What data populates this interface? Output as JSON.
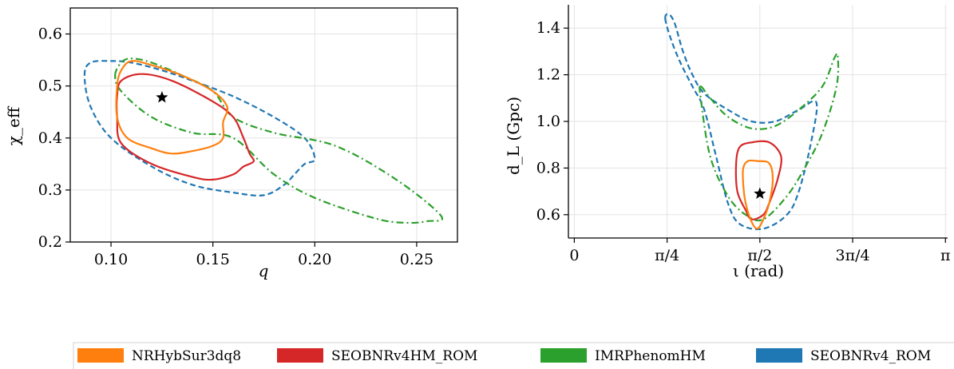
{
  "chart_data": [
    {
      "type": "contour",
      "panel": "left",
      "xlabel": "q",
      "ylabel": "χ_eff",
      "xlim": [
        0.08,
        0.27
      ],
      "ylim": [
        0.2,
        0.65
      ],
      "xticks": [
        0.1,
        0.15,
        0.2,
        0.25
      ],
      "xtick_labels": [
        "0.10",
        "0.15",
        "0.20",
        "0.25"
      ],
      "yticks": [
        0.2,
        0.3,
        0.4,
        0.5,
        0.6
      ],
      "ytick_labels": [
        "0.2",
        "0.3",
        "0.4",
        "0.5",
        "0.6"
      ],
      "grid": true,
      "marker": {
        "x": 0.125,
        "y": 0.478,
        "symbol": "star"
      },
      "contours": [
        {
          "series": "SEOBNRv4_ROM",
          "points": [
            [
              0.087,
              0.52
            ],
            [
              0.09,
              0.545
            ],
            [
              0.1,
              0.548
            ],
            [
              0.11,
              0.545
            ],
            [
              0.125,
              0.53
            ],
            [
              0.14,
              0.51
            ],
            [
              0.16,
              0.48
            ],
            [
              0.18,
              0.44
            ],
            [
              0.195,
              0.4
            ],
            [
              0.2,
              0.36
            ],
            [
              0.195,
              0.35
            ],
            [
              0.19,
              0.33
            ],
            [
              0.185,
              0.31
            ],
            [
              0.175,
              0.29
            ],
            [
              0.16,
              0.295
            ],
            [
              0.14,
              0.31
            ],
            [
              0.12,
              0.345
            ],
            [
              0.1,
              0.4
            ],
            [
              0.09,
              0.46
            ],
            [
              0.087,
              0.52
            ]
          ]
        },
        {
          "series": "IMRPhenomHM",
          "points": [
            [
              0.102,
              0.52
            ],
            [
              0.105,
              0.545
            ],
            [
              0.11,
              0.553
            ],
            [
              0.12,
              0.545
            ],
            [
              0.135,
              0.52
            ],
            [
              0.15,
              0.49
            ],
            [
              0.16,
              0.44
            ],
            [
              0.18,
              0.41
            ],
            [
              0.21,
              0.385
            ],
            [
              0.24,
              0.32
            ],
            [
              0.262,
              0.25
            ],
            [
              0.255,
              0.24
            ],
            [
              0.245,
              0.237
            ],
            [
              0.23,
              0.245
            ],
            [
              0.2,
              0.285
            ],
            [
              0.18,
              0.33
            ],
            [
              0.16,
              0.4
            ],
            [
              0.14,
              0.41
            ],
            [
              0.12,
              0.44
            ],
            [
              0.105,
              0.49
            ],
            [
              0.102,
              0.52
            ]
          ]
        },
        {
          "series": "SEOBNRv4HM_ROM",
          "points": [
            [
              0.103,
              0.48
            ],
            [
              0.105,
              0.51
            ],
            [
              0.115,
              0.523
            ],
            [
              0.13,
              0.51
            ],
            [
              0.15,
              0.47
            ],
            [
              0.16,
              0.44
            ],
            [
              0.165,
              0.4
            ],
            [
              0.168,
              0.37
            ],
            [
              0.17,
              0.355
            ],
            [
              0.165,
              0.345
            ],
            [
              0.16,
              0.33
            ],
            [
              0.15,
              0.32
            ],
            [
              0.14,
              0.325
            ],
            [
              0.12,
              0.35
            ],
            [
              0.105,
              0.39
            ],
            [
              0.103,
              0.44
            ],
            [
              0.103,
              0.48
            ]
          ]
        },
        {
          "series": "NRHybSur3dq8",
          "points": [
            [
              0.103,
              0.5
            ],
            [
              0.105,
              0.53
            ],
            [
              0.11,
              0.548
            ],
            [
              0.12,
              0.54
            ],
            [
              0.135,
              0.52
            ],
            [
              0.15,
              0.49
            ],
            [
              0.157,
              0.46
            ],
            [
              0.155,
              0.43
            ],
            [
              0.155,
              0.4
            ],
            [
              0.15,
              0.385
            ],
            [
              0.14,
              0.375
            ],
            [
              0.13,
              0.37
            ],
            [
              0.12,
              0.38
            ],
            [
              0.108,
              0.4
            ],
            [
              0.103,
              0.44
            ],
            [
              0.103,
              0.5
            ]
          ]
        }
      ]
    },
    {
      "type": "contour",
      "panel": "right",
      "xlabel": "ι (rad)",
      "ylabel": "d_L (Gpc)",
      "xlim": [
        -0.05,
        3.16
      ],
      "ylim": [
        0.5,
        1.5
      ],
      "xticks": [
        0,
        0.7854,
        1.5708,
        2.3562,
        3.1416
      ],
      "xtick_labels": [
        "0",
        "π/4",
        "π/2",
        "3π/4",
        "π"
      ],
      "yticks": [
        0.6,
        0.8,
        1.0,
        1.2,
        1.4
      ],
      "ytick_labels": [
        "0.6",
        "0.8",
        "1.0",
        "1.2",
        "1.4"
      ],
      "grid": true,
      "marker": {
        "x": 1.5708,
        "y": 0.69,
        "symbol": "star"
      },
      "contours": [
        {
          "series": "SEOBNRv4_ROM",
          "points": [
            [
              0.77,
              1.44
            ],
            [
              0.8,
              1.46
            ],
            [
              0.85,
              1.42
            ],
            [
              0.92,
              1.3
            ],
            [
              1.0,
              1.2
            ],
            [
              1.1,
              1.12
            ],
            [
              1.3,
              1.05
            ],
            [
              1.5,
              1.0
            ],
            [
              1.7,
              1.0
            ],
            [
              1.9,
              1.05
            ],
            [
              2.05,
              1.08
            ],
            [
              2.0,
              0.9
            ],
            [
              1.9,
              0.7
            ],
            [
              1.8,
              0.6
            ],
            [
              1.6,
              0.54
            ],
            [
              1.4,
              0.56
            ],
            [
              1.3,
              0.65
            ],
            [
              1.2,
              0.85
            ],
            [
              1.1,
              1.05
            ],
            [
              1.0,
              1.15
            ],
            [
              0.9,
              1.25
            ],
            [
              0.82,
              1.35
            ],
            [
              0.77,
              1.44
            ]
          ]
        },
        {
          "series": "IMRPhenomHM",
          "points": [
            [
              1.07,
              1.15
            ],
            [
              1.15,
              1.1
            ],
            [
              1.3,
              1.02
            ],
            [
              1.5,
              0.97
            ],
            [
              1.7,
              0.98
            ],
            [
              1.9,
              1.05
            ],
            [
              2.1,
              1.15
            ],
            [
              2.2,
              1.27
            ],
            [
              2.23,
              1.28
            ],
            [
              2.22,
              1.15
            ],
            [
              2.1,
              0.95
            ],
            [
              1.95,
              0.8
            ],
            [
              1.8,
              0.68
            ],
            [
              1.6,
              0.58
            ],
            [
              1.45,
              0.6
            ],
            [
              1.3,
              0.68
            ],
            [
              1.15,
              0.85
            ],
            [
              1.07,
              1.1
            ],
            [
              1.07,
              1.15
            ]
          ]
        },
        {
          "series": "SEOBNRv4HM_ROM",
          "points": [
            [
              1.37,
              0.82
            ],
            [
              1.4,
              0.89
            ],
            [
              1.5,
              0.91
            ],
            [
              1.65,
              0.91
            ],
            [
              1.75,
              0.85
            ],
            [
              1.72,
              0.75
            ],
            [
              1.65,
              0.65
            ],
            [
              1.6,
              0.6
            ],
            [
              1.5,
              0.58
            ],
            [
              1.45,
              0.62
            ],
            [
              1.38,
              0.7
            ],
            [
              1.37,
              0.82
            ]
          ]
        },
        {
          "series": "NRHybSur3dq8",
          "points": [
            [
              1.43,
              0.8
            ],
            [
              1.47,
              0.83
            ],
            [
              1.55,
              0.83
            ],
            [
              1.65,
              0.82
            ],
            [
              1.68,
              0.75
            ],
            [
              1.65,
              0.65
            ],
            [
              1.6,
              0.58
            ],
            [
              1.55,
              0.54
            ],
            [
              1.5,
              0.57
            ],
            [
              1.45,
              0.65
            ],
            [
              1.43,
              0.73
            ],
            [
              1.43,
              0.8
            ]
          ]
        }
      ]
    }
  ],
  "legend": {
    "placement": "bottom",
    "entries": [
      {
        "label": "NRHybSur3dq8",
        "color": "#ff7f0e",
        "style": "solid"
      },
      {
        "label": "SEOBNRv4HM_ROM",
        "color": "#d62728",
        "style": "solid"
      },
      {
        "label": "IMRPhenomHM",
        "color": "#2ca02c",
        "style": "dashdot"
      },
      {
        "label": "SEOBNRv4_ROM",
        "color": "#1f77b4",
        "style": "dashed"
      }
    ]
  }
}
